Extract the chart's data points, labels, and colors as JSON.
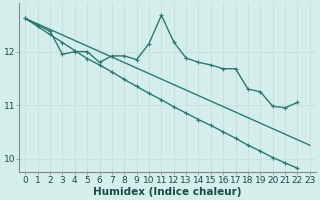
{
  "title": "",
  "xlabel": "Humidex (Indice chaleur)",
  "ylabel": "",
  "background_color": "#d4eeec",
  "grid_color": "#c8e0de",
  "line_color": "#2a7a70",
  "x": [
    0,
    1,
    2,
    3,
    4,
    5,
    6,
    7,
    8,
    9,
    10,
    11,
    12,
    13,
    14,
    15,
    16,
    17,
    18,
    19,
    20,
    21,
    22,
    23
  ],
  "line_jagged_y": [
    12.62,
    12.5,
    12.38,
    11.95,
    12.0,
    12.0,
    11.8,
    11.92,
    11.92,
    11.85,
    12.15,
    12.68,
    12.18,
    11.88,
    11.8,
    11.75,
    11.68,
    11.68,
    11.3,
    11.25,
    10.98,
    10.95,
    11.05,
    null
  ],
  "line_straight_x": [
    0,
    1,
    2,
    3,
    4,
    5,
    6,
    7,
    8,
    9,
    10,
    11,
    12,
    13,
    14,
    15,
    16,
    17,
    18,
    19,
    20,
    21,
    22,
    23
  ],
  "line_straight_y": [
    12.62,
    12.47,
    12.32,
    12.17,
    12.02,
    11.87,
    11.75,
    11.62,
    11.48,
    11.35,
    11.22,
    11.1,
    10.97,
    10.85,
    10.73,
    10.62,
    10.5,
    10.38,
    10.25,
    10.14,
    10.02,
    9.92,
    9.82,
    null
  ],
  "straight_endpoint_x": 23,
  "straight_endpoint_y": 10.25,
  "ylim": [
    9.75,
    12.9
  ],
  "xlim": [
    -0.5,
    23.5
  ],
  "yticks": [
    10,
    11,
    12
  ],
  "xticks": [
    0,
    1,
    2,
    3,
    4,
    5,
    6,
    7,
    8,
    9,
    10,
    11,
    12,
    13,
    14,
    15,
    16,
    17,
    18,
    19,
    20,
    21,
    22,
    23
  ],
  "xlabel_fontsize": 7.5,
  "tick_fontsize": 6.5
}
